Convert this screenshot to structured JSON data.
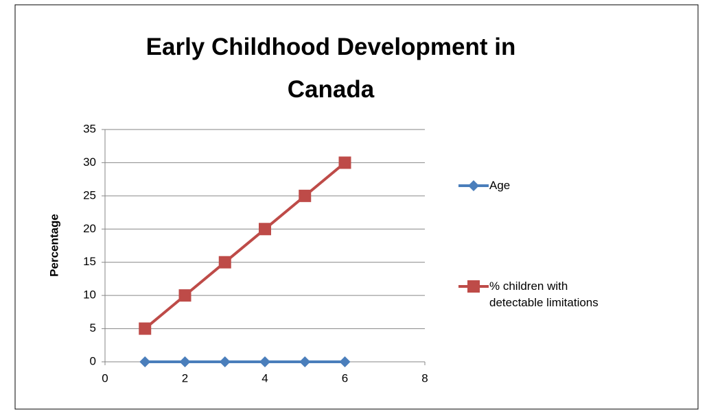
{
  "chart_data": {
    "type": "line",
    "title": "Early Childhood Development in Canada",
    "y_label": "Percentage",
    "x": [
      1,
      2,
      3,
      4,
      5,
      6
    ],
    "series": [
      {
        "name": "Age",
        "color": "#4a7ebb",
        "marker": "diamond",
        "values": [
          0,
          0,
          0,
          0,
          0,
          0
        ]
      },
      {
        "name": "% children with detectable limitations",
        "color": "#be4b48",
        "marker": "square",
        "values": [
          5,
          10,
          15,
          20,
          25,
          30
        ]
      }
    ],
    "xlim": [
      0,
      8
    ],
    "xticks": [
      0,
      2,
      4,
      6,
      8
    ],
    "ylim": [
      0,
      35
    ],
    "yticks": [
      0,
      5,
      10,
      15,
      20,
      25,
      30,
      35
    ],
    "grid": true,
    "legend": "right"
  }
}
